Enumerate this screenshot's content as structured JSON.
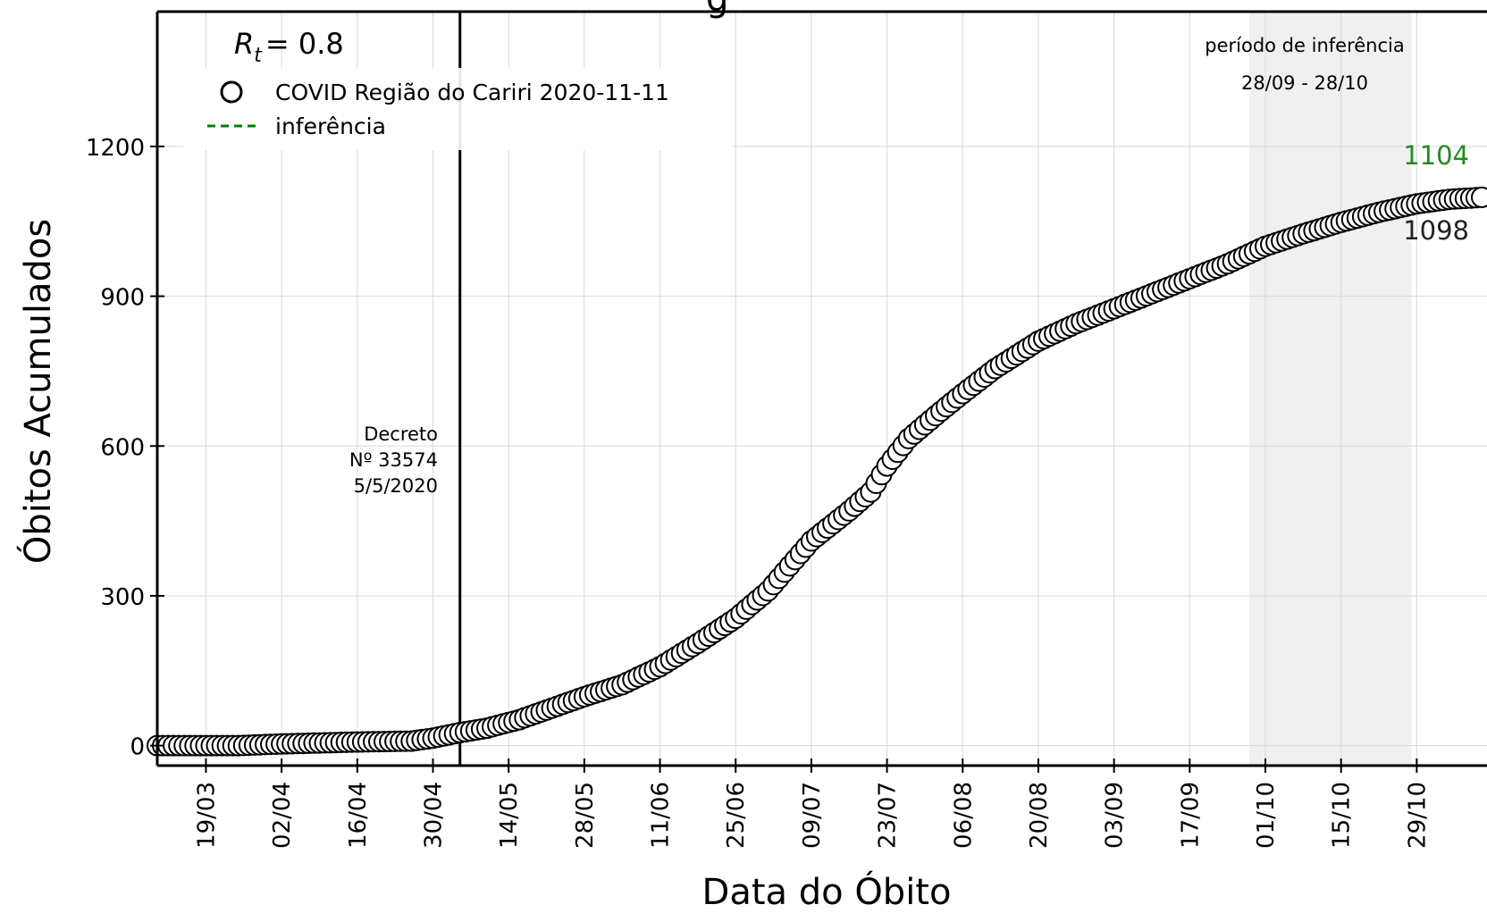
{
  "chart_data": {
    "type": "scatter",
    "xlabel": "Data do Óbito",
    "ylabel": "Óbitos Acumulados",
    "title_fragment": "g",
    "x_range": [
      "2020-03-10",
      "2020-11-11"
    ],
    "ylim": [
      -40,
      1470
    ],
    "yticks": [
      0,
      300,
      600,
      900,
      1200
    ],
    "xtick_dates": [
      "2020-03-19",
      "2020-04-02",
      "2020-04-16",
      "2020-04-30",
      "2020-05-14",
      "2020-05-28",
      "2020-06-11",
      "2020-06-25",
      "2020-07-09",
      "2020-07-23",
      "2020-08-06",
      "2020-08-20",
      "2020-09-03",
      "2020-09-17",
      "2020-10-01",
      "2020-10-15",
      "2020-10-29"
    ],
    "xtick_labels": [
      "19/03",
      "02/04",
      "16/04",
      "30/04",
      "14/05",
      "28/05",
      "11/06",
      "25/06",
      "09/07",
      "23/07",
      "06/08",
      "20/08",
      "03/09",
      "17/09",
      "01/10",
      "15/10",
      "29/10"
    ],
    "grid": true,
    "rt_label": "R",
    "rt_subscript": "t",
    "rt_value": "= 0.8",
    "legend": {
      "placement": "upper-left",
      "entries": [
        {
          "label": "COVID Região do Cariri 2020-11-11",
          "marker": "circle-open",
          "color": "#000000"
        },
        {
          "label": "inferência",
          "marker": "dashed-line",
          "color": "#008000"
        }
      ]
    },
    "decree": {
      "date": "2020-05-05",
      "lines": [
        "Decreto",
        "Nº 33574",
        "5/5/2020"
      ]
    },
    "inference_period": {
      "start": "2020-09-28",
      "end": "2020-10-28",
      "label": "período de inferência",
      "range_label": "28/09 - 28/10",
      "shade_color": "#f0f0f0"
    },
    "anchors": [
      {
        "date": "2020-03-10",
        "value": 0
      },
      {
        "date": "2020-03-25",
        "value": 0
      },
      {
        "date": "2020-04-01",
        "value": 3
      },
      {
        "date": "2020-04-15",
        "value": 7
      },
      {
        "date": "2020-04-26",
        "value": 9
      },
      {
        "date": "2020-04-30",
        "value": 15
      },
      {
        "date": "2020-05-05",
        "value": 26
      },
      {
        "date": "2020-05-10",
        "value": 35
      },
      {
        "date": "2020-05-16",
        "value": 52
      },
      {
        "date": "2020-05-22",
        "value": 75
      },
      {
        "date": "2020-05-28",
        "value": 98
      },
      {
        "date": "2020-06-04",
        "value": 122
      },
      {
        "date": "2020-06-11",
        "value": 158
      },
      {
        "date": "2020-06-18",
        "value": 205
      },
      {
        "date": "2020-06-25",
        "value": 255
      },
      {
        "date": "2020-07-01",
        "value": 310
      },
      {
        "date": "2020-07-05",
        "value": 360
      },
      {
        "date": "2020-07-09",
        "value": 410
      },
      {
        "date": "2020-07-16",
        "value": 470
      },
      {
        "date": "2020-07-20",
        "value": 508
      },
      {
        "date": "2020-07-23",
        "value": 560
      },
      {
        "date": "2020-07-27",
        "value": 615
      },
      {
        "date": "2020-08-02",
        "value": 670
      },
      {
        "date": "2020-08-06",
        "value": 705
      },
      {
        "date": "2020-08-12",
        "value": 755
      },
      {
        "date": "2020-08-20",
        "value": 810
      },
      {
        "date": "2020-08-27",
        "value": 845
      },
      {
        "date": "2020-09-03",
        "value": 875
      },
      {
        "date": "2020-09-10",
        "value": 905
      },
      {
        "date": "2020-09-17",
        "value": 935
      },
      {
        "date": "2020-09-24",
        "value": 965
      },
      {
        "date": "2020-10-01",
        "value": 1000
      },
      {
        "date": "2020-10-08",
        "value": 1025
      },
      {
        "date": "2020-10-15",
        "value": 1048
      },
      {
        "date": "2020-10-22",
        "value": 1068
      },
      {
        "date": "2020-10-29",
        "value": 1085
      },
      {
        "date": "2020-11-04",
        "value": 1094
      },
      {
        "date": "2020-11-10",
        "value": 1098
      }
    ],
    "inference_line": [
      {
        "date": "2020-09-28",
        "value": 990
      },
      {
        "date": "2020-10-08",
        "value": 1028
      },
      {
        "date": "2020-10-18",
        "value": 1058
      },
      {
        "date": "2020-10-28",
        "value": 1080
      },
      {
        "date": "2020-11-10",
        "value": 1104
      }
    ],
    "end_labels": {
      "observed": {
        "date": "2020-11-10",
        "value": 1098,
        "text": "1098",
        "color": "#222222"
      },
      "inferred": {
        "date": "2020-11-10",
        "value": 1104,
        "text": "1104",
        "color": "#228b22"
      }
    }
  }
}
